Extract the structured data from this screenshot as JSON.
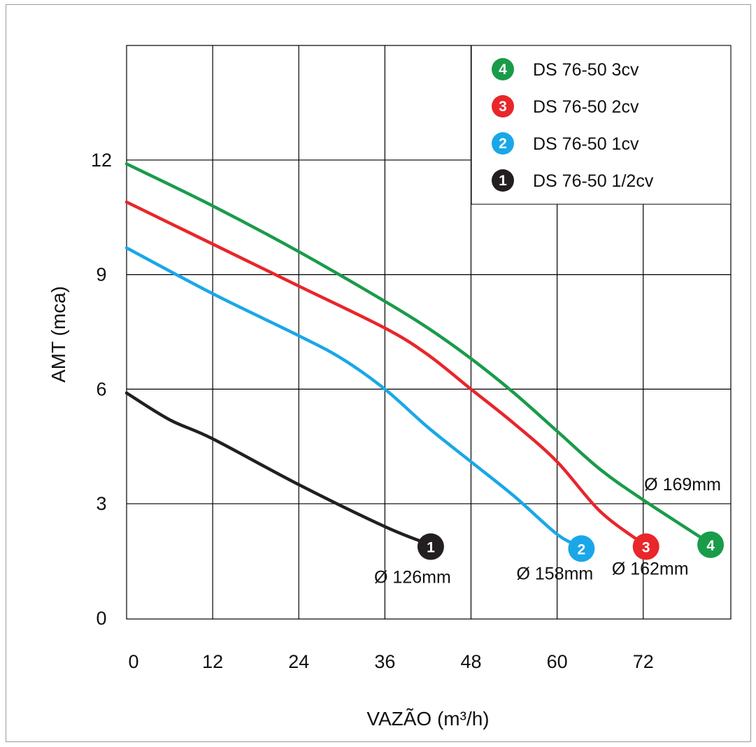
{
  "chart_data": {
    "type": "line",
    "xlabel": "VAZÃO (m³/h)",
    "ylabel": "AMT (mca)",
    "xlim": [
      0,
      84
    ],
    "ylim": [
      0,
      15
    ],
    "x_ticks": [
      "0",
      "12",
      "24",
      "36",
      "48",
      "60",
      "72"
    ],
    "y_ticks": [
      "0",
      "3",
      "6",
      "9",
      "12"
    ],
    "grid": true,
    "legend_position": "top-right",
    "series": [
      {
        "name": "DS 76-50 3cv",
        "badge": "4",
        "color": "#1a9b4a",
        "diameter_label": "Ø 169mm",
        "x": [
          0,
          12,
          24,
          36,
          42,
          48,
          54,
          60,
          66,
          72,
          81
        ],
        "y": [
          11.9,
          10.8,
          9.6,
          8.3,
          7.6,
          6.8,
          5.9,
          4.9,
          3.9,
          3.1,
          2.0
        ]
      },
      {
        "name": "DS 76-50 2cv",
        "badge": "3",
        "color": "#e8262b",
        "diameter_label": "Ø 162mm",
        "x": [
          0,
          12,
          24,
          36,
          42,
          48,
          54,
          60,
          66,
          72
        ],
        "y": [
          10.9,
          9.8,
          8.7,
          7.6,
          6.9,
          6.0,
          5.1,
          4.1,
          2.8,
          1.95
        ]
      },
      {
        "name": "DS 76-50 1cv",
        "badge": "2",
        "color": "#1aa7e8",
        "diameter_label": "Ø 158mm",
        "x": [
          0,
          12,
          24,
          30,
          36,
          42,
          48,
          54,
          60,
          63
        ],
        "y": [
          9.7,
          8.5,
          7.4,
          6.8,
          6.0,
          5.0,
          4.1,
          3.2,
          2.2,
          1.9
        ]
      },
      {
        "name": "DS 76-50 1/2cv",
        "badge": "1",
        "color": "#231f20",
        "diameter_label": "Ø 126mm",
        "x": [
          0,
          6,
          12,
          24,
          36,
          42
        ],
        "y": [
          5.9,
          5.2,
          4.7,
          3.5,
          2.4,
          1.95
        ]
      }
    ]
  },
  "badge_colors": {
    "4": "#1a9b4a",
    "3": "#e8262b",
    "2": "#1aa7e8",
    "1": "#231f20"
  }
}
